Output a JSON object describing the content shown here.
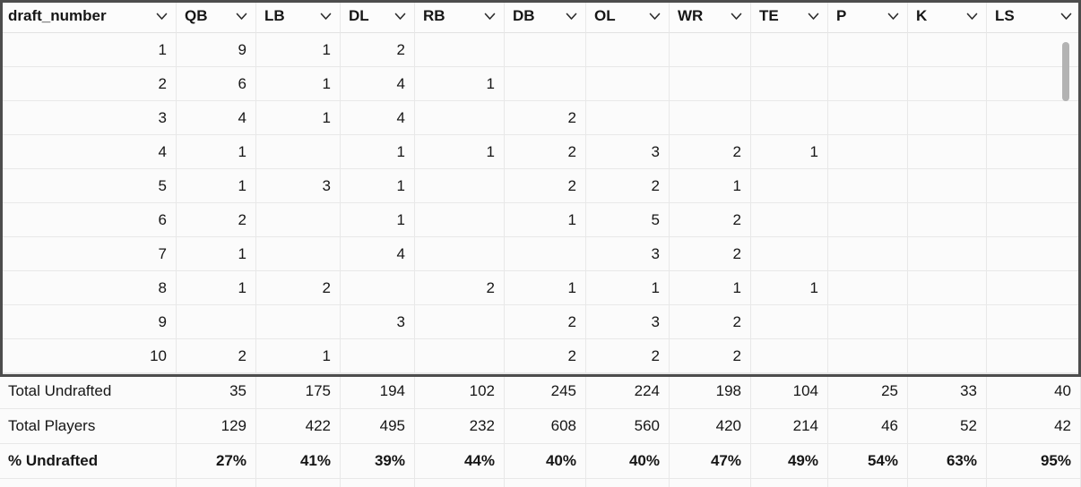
{
  "table": {
    "columns": [
      {
        "label": "draft_number",
        "menu_icon": "chevron-down-icon"
      },
      {
        "label": "QB",
        "menu_icon": "chevron-down-icon"
      },
      {
        "label": "LB",
        "menu_icon": "chevron-down-icon"
      },
      {
        "label": "DL",
        "menu_icon": "chevron-down-icon"
      },
      {
        "label": "RB",
        "menu_icon": "chevron-down-icon"
      },
      {
        "label": "DB",
        "menu_icon": "chevron-down-icon"
      },
      {
        "label": "OL",
        "menu_icon": "chevron-down-icon"
      },
      {
        "label": "WR",
        "menu_icon": "chevron-down-icon"
      },
      {
        "label": "TE",
        "menu_icon": "chevron-down-icon"
      },
      {
        "label": "P",
        "menu_icon": "chevron-down-icon"
      },
      {
        "label": "K",
        "menu_icon": "chevron-down-icon"
      },
      {
        "label": "LS",
        "menu_icon": "chevron-down-icon"
      }
    ],
    "rows": [
      [
        "1",
        "9",
        "1",
        "2",
        "",
        "",
        "",
        "",
        "",
        "",
        "",
        ""
      ],
      [
        "2",
        "6",
        "1",
        "4",
        "1",
        "",
        "",
        "",
        "",
        "",
        "",
        ""
      ],
      [
        "3",
        "4",
        "1",
        "4",
        "",
        "2",
        "",
        "",
        "",
        "",
        "",
        ""
      ],
      [
        "4",
        "1",
        "",
        "1",
        "1",
        "2",
        "3",
        "2",
        "1",
        "",
        "",
        ""
      ],
      [
        "5",
        "1",
        "3",
        "1",
        "",
        "2",
        "2",
        "1",
        "",
        "",
        "",
        ""
      ],
      [
        "6",
        "2",
        "",
        "1",
        "",
        "1",
        "5",
        "2",
        "",
        "",
        "",
        ""
      ],
      [
        "7",
        "1",
        "",
        "4",
        "",
        "",
        "3",
        "2",
        "",
        "",
        "",
        ""
      ],
      [
        "8",
        "1",
        "2",
        "",
        "2",
        "1",
        "1",
        "1",
        "1",
        "",
        "",
        ""
      ],
      [
        "9",
        "",
        "",
        "3",
        "",
        "2",
        "3",
        "2",
        "",
        "",
        "",
        ""
      ],
      [
        "10",
        "2",
        "1",
        "",
        "",
        "2",
        "2",
        "2",
        "",
        "",
        "",
        ""
      ]
    ],
    "summary_rows": [
      {
        "label": "Total Undrafted",
        "values": [
          "35",
          "175",
          "194",
          "102",
          "245",
          "224",
          "198",
          "104",
          "25",
          "33",
          "40"
        ],
        "bold": false
      },
      {
        "label": "Total Players",
        "values": [
          "129",
          "422",
          "495",
          "232",
          "608",
          "560",
          "420",
          "214",
          "46",
          "52",
          "42"
        ],
        "bold": false
      },
      {
        "label": "% Undrafted",
        "values": [
          "27%",
          "41%",
          "39%",
          "44%",
          "40%",
          "40%",
          "47%",
          "49%",
          "54%",
          "63%",
          "95%"
        ],
        "bold": true
      }
    ]
  },
  "colors": {
    "selection_border": "#4d4d4d",
    "gridline": "#e8e8e8",
    "cell_background": "#fbfbfb",
    "text": "#161616",
    "scrollbar_thumb": "#b3b3b3"
  }
}
